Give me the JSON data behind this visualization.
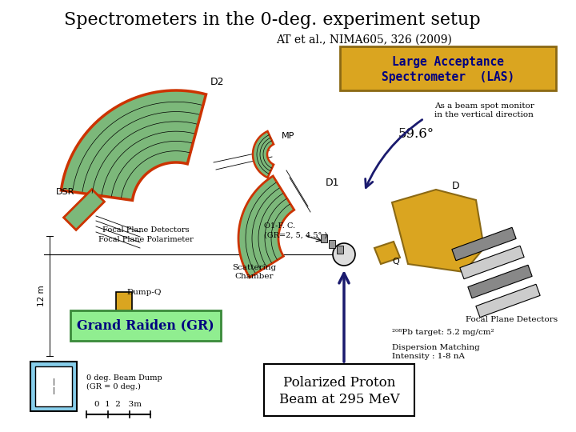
{
  "title": "Spectrometers in the 0-deg. experiment setup",
  "subtitle": "AT et al., NIMA605, 326 (2009)",
  "bg_color": "#ffffff",
  "title_fontsize": 16,
  "subtitle_fontsize": 10,
  "las_box_color": "#DAA520",
  "las_text": "Large Acceptance\nSpectrometer  (LAS)",
  "las_text_color": "#000080",
  "gr_box_color": "#90EE90",
  "gr_text": "Grand Raiden (GR)",
  "gr_text_color": "#000080",
  "polarized_text": "Polarized Proton\nBeam at 295 MeV",
  "angle_text": "59.6°",
  "beam_spot_text": "As a beam spot monitor\nin the vertical direction",
  "pb_target_text": "²⁰⁸Pb target: 5.2 mg/cm²",
  "dispersion_text": "Dispersion Matching\nIntensity : 1-8 nA",
  "focal_plane_text1": "Focal Plane Detectors",
  "focal_plane_text2": "Focal Plane Polarimeter",
  "focal_plane_text3": "Focal Plane Detectors",
  "scattering_text": "Scattering\nChamber",
  "oi_fc_text": "O1-F. C.\n(GR=2, 5, 4.5° )",
  "dump_q_text": "Dump-Q",
  "beam_dump_text": "0 deg. Beam Dump\n(GR = 0 deg.)",
  "scale_text": "0  1  2   3m",
  "green_color": "#7CB87A",
  "red_orange": "#CC3300",
  "orange_color": "#DAA520",
  "light_blue": "#87CEEB",
  "dark_navy": "#1a1a6e",
  "gray_color": "#808080"
}
